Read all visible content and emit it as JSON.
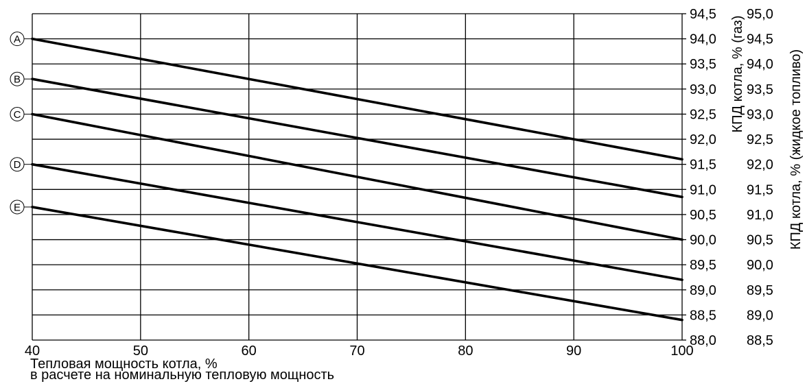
{
  "chart_data": {
    "type": "line",
    "x_ticks": [
      40,
      50,
      60,
      70,
      80,
      90,
      100
    ],
    "xlim": [
      40,
      100
    ],
    "xlabel_line1": "Тепловая мощность котла, %",
    "xlabel_line2": "в расчете на номинальную тепловую мощность",
    "y_gas": {
      "label": "КПД котла, % (газ)",
      "ylim": [
        88.0,
        94.5
      ],
      "ticks": [
        "94,5",
        "94,0",
        "93,5",
        "93,0",
        "92,5",
        "92,0",
        "91,5",
        "91,0",
        "90,5",
        "90,0",
        "89,5",
        "89,0",
        "88,5",
        "88,0"
      ]
    },
    "y_oil": {
      "label": "КПД котла, % (жидкое топливо)",
      "ylim": [
        88.5,
        95.0
      ],
      "ticks": [
        "95,0",
        "94,5",
        "94,0",
        "93,5",
        "93,0",
        "92,5",
        "92,0",
        "91,5",
        "91,0",
        "90,5",
        "90,0",
        "89,5",
        "89,0",
        "88,5"
      ]
    },
    "grid": true,
    "series": [
      {
        "name": "A",
        "x": [
          40,
          100
        ],
        "y_gas": [
          94.0,
          91.6
        ]
      },
      {
        "name": "B",
        "x": [
          40,
          100
        ],
        "y_gas": [
          93.2,
          90.85
        ]
      },
      {
        "name": "C",
        "x": [
          40,
          100
        ],
        "y_gas": [
          92.5,
          90.0
        ]
      },
      {
        "name": "D",
        "x": [
          40,
          100
        ],
        "y_gas": [
          91.5,
          89.2
        ]
      },
      {
        "name": "E",
        "x": [
          40,
          100
        ],
        "y_gas": [
          90.65,
          88.4
        ]
      }
    ]
  }
}
